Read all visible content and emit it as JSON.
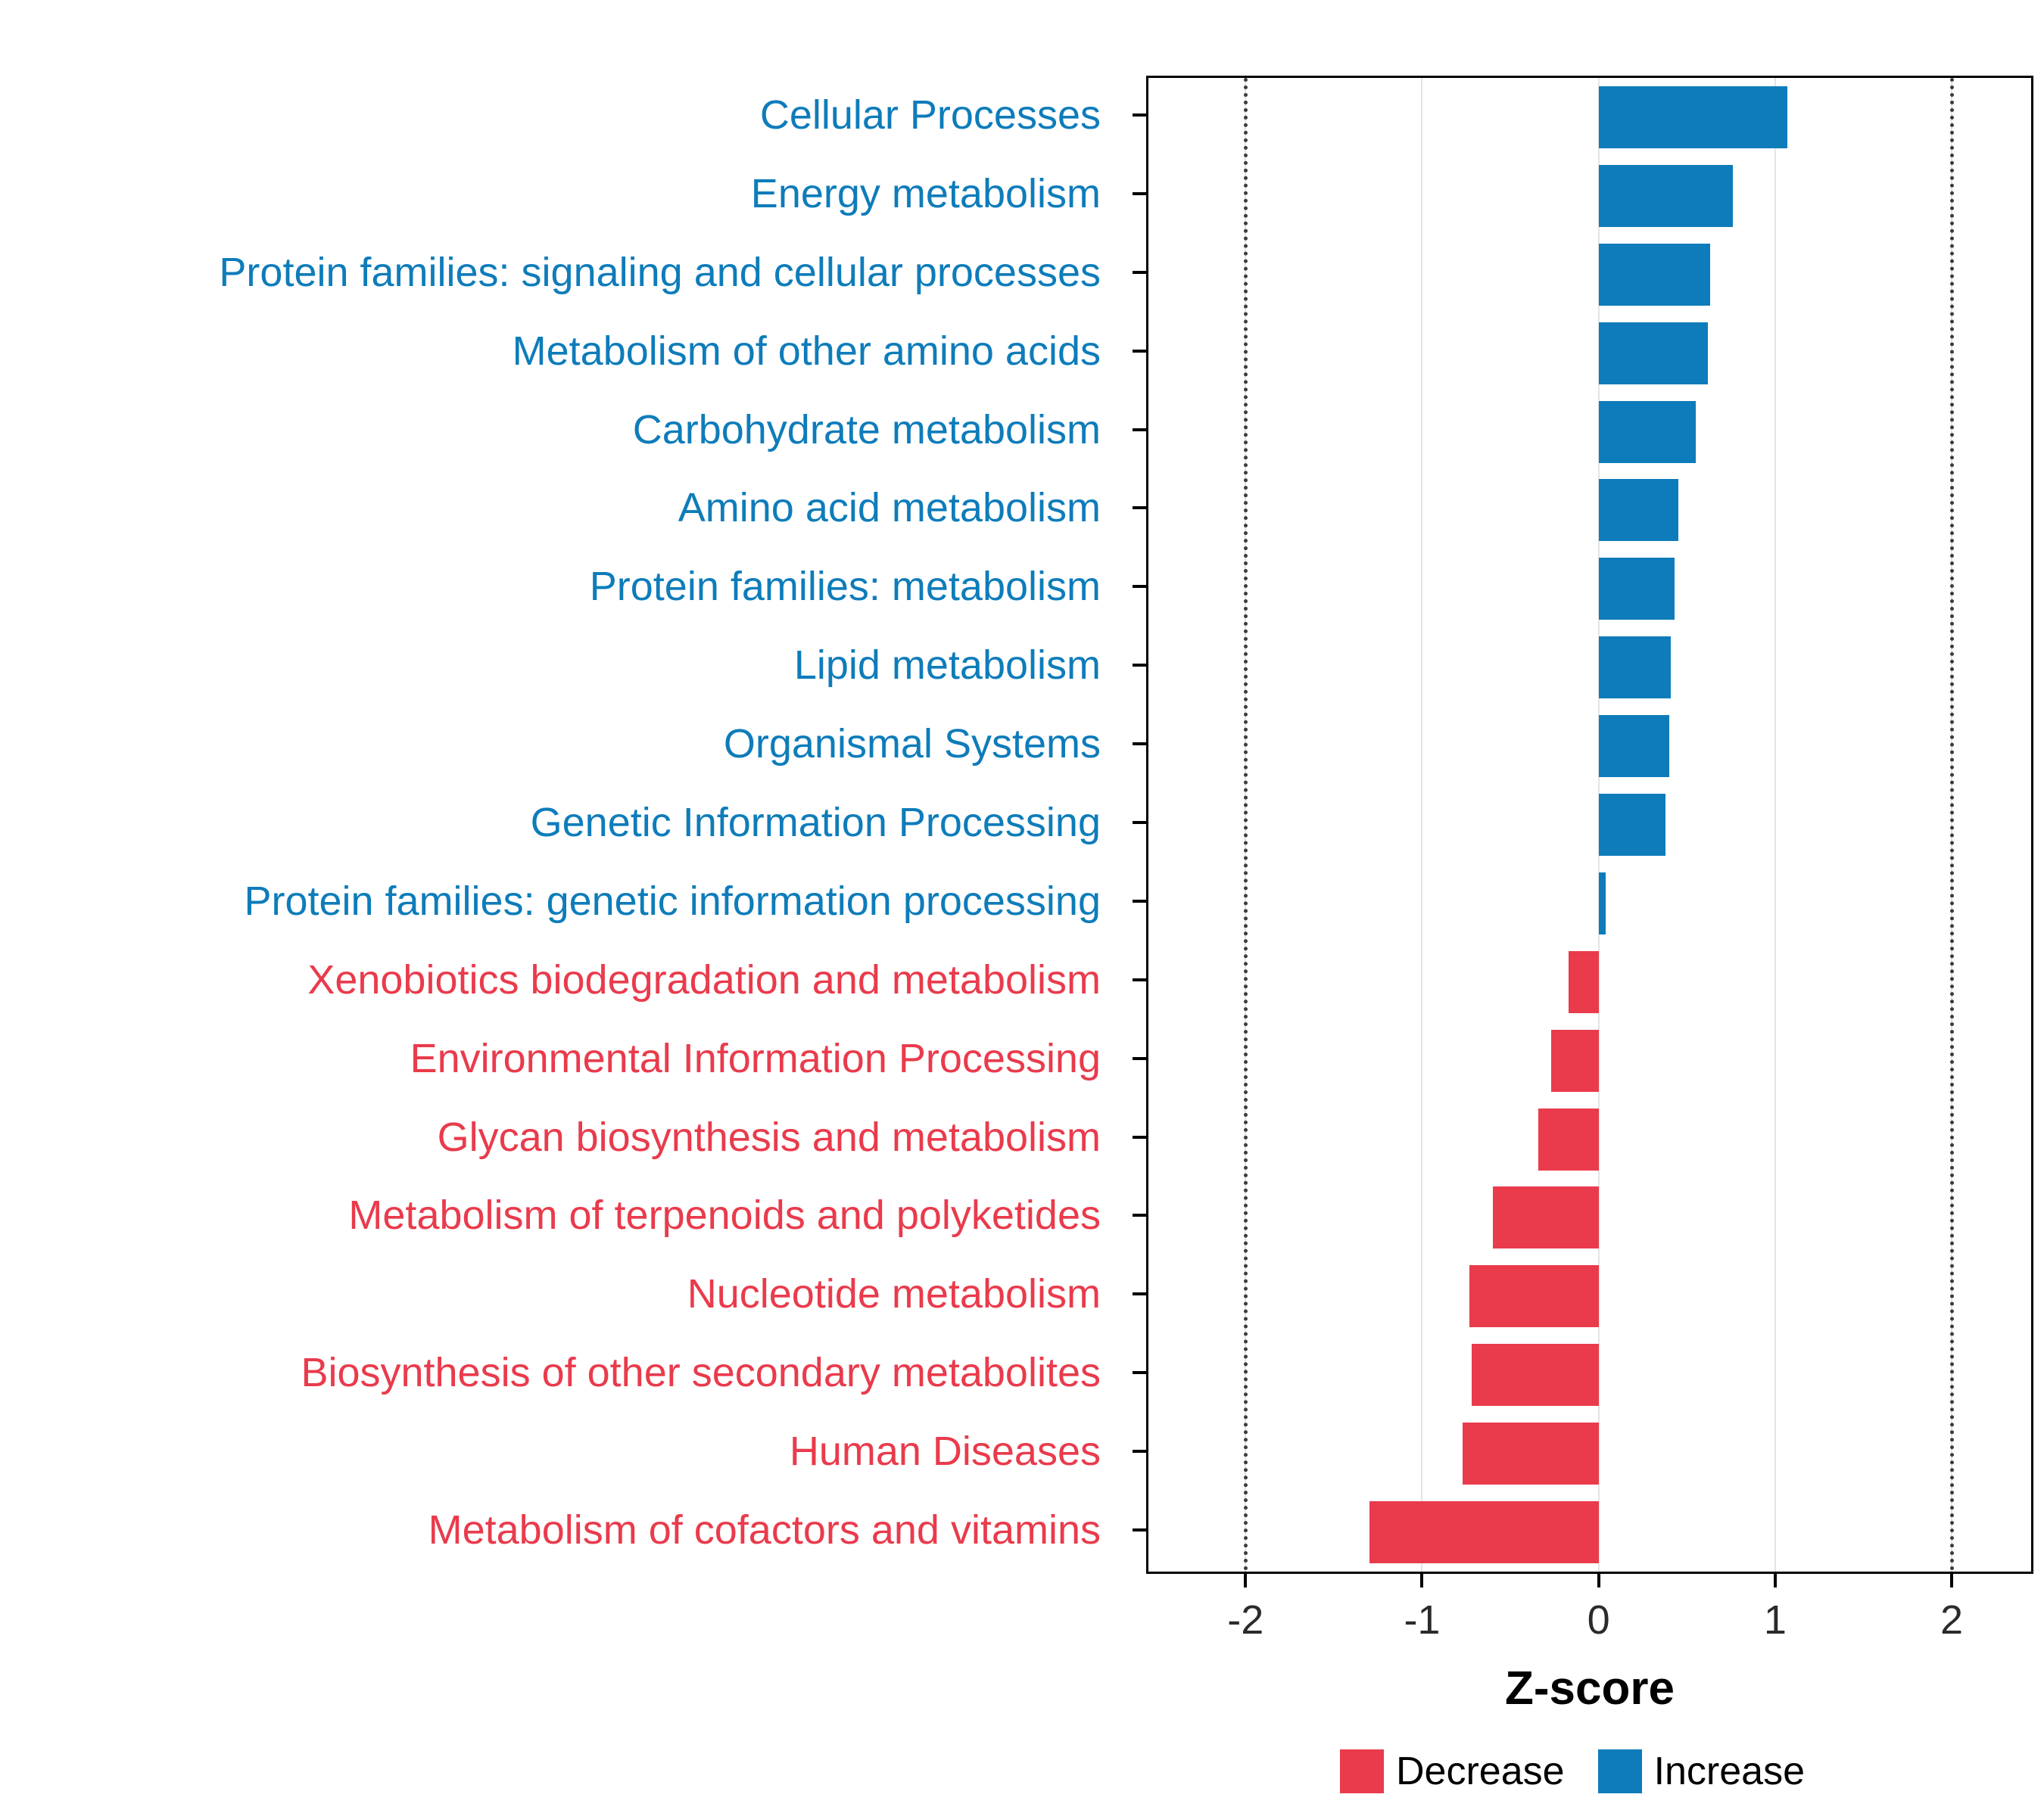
{
  "chart_data": {
    "type": "bar",
    "orientation": "horizontal",
    "title": "",
    "xlabel": "Z-score",
    "xlim": [
      -2.55,
      2.45
    ],
    "xticks": [
      -2,
      -1,
      0,
      1,
      2
    ],
    "xtick_labels": [
      "-2",
      "-1",
      "0",
      "1",
      "2"
    ],
    "dotted_lines": [
      -2,
      2
    ],
    "grid": "major-vertical",
    "colors": {
      "increase": "#0e7cba",
      "decrease": "#e93b4c"
    },
    "legend_position": "bottom-right",
    "legend": [
      {
        "label": "Decrease",
        "color": "#e93b4c"
      },
      {
        "label": "Increase",
        "color": "#0e7cba"
      }
    ],
    "categories": [
      {
        "label": "Cellular Processes",
        "value": 1.07,
        "direction": "increase"
      },
      {
        "label": "Energy metabolism",
        "value": 0.76,
        "direction": "increase"
      },
      {
        "label": "Protein families: signaling and cellular processes",
        "value": 0.63,
        "direction": "increase"
      },
      {
        "label": "Metabolism of other amino acids",
        "value": 0.62,
        "direction": "increase"
      },
      {
        "label": "Carbohydrate metabolism",
        "value": 0.55,
        "direction": "increase"
      },
      {
        "label": "Amino acid metabolism",
        "value": 0.45,
        "direction": "increase"
      },
      {
        "label": "Protein families: metabolism",
        "value": 0.43,
        "direction": "increase"
      },
      {
        "label": "Lipid metabolism",
        "value": 0.41,
        "direction": "increase"
      },
      {
        "label": "Organismal Systems",
        "value": 0.4,
        "direction": "increase"
      },
      {
        "label": "Genetic Information Processing",
        "value": 0.38,
        "direction": "increase"
      },
      {
        "label": "Protein families: genetic information processing",
        "value": 0.04,
        "direction": "increase"
      },
      {
        "label": "Xenobiotics biodegradation and metabolism",
        "value": -0.17,
        "direction": "decrease"
      },
      {
        "label": "Environmental Information Processing",
        "value": -0.27,
        "direction": "decrease"
      },
      {
        "label": "Glycan biosynthesis and metabolism",
        "value": -0.34,
        "direction": "decrease"
      },
      {
        "label": "Metabolism of terpenoids and polyketides",
        "value": -0.6,
        "direction": "decrease"
      },
      {
        "label": "Nucleotide metabolism",
        "value": -0.73,
        "direction": "decrease"
      },
      {
        "label": "Biosynthesis of other secondary metabolites",
        "value": -0.72,
        "direction": "decrease"
      },
      {
        "label": "Human Diseases",
        "value": -0.77,
        "direction": "decrease"
      },
      {
        "label": "Metabolism of cofactors and vitamins",
        "value": -1.3,
        "direction": "decrease"
      }
    ]
  }
}
